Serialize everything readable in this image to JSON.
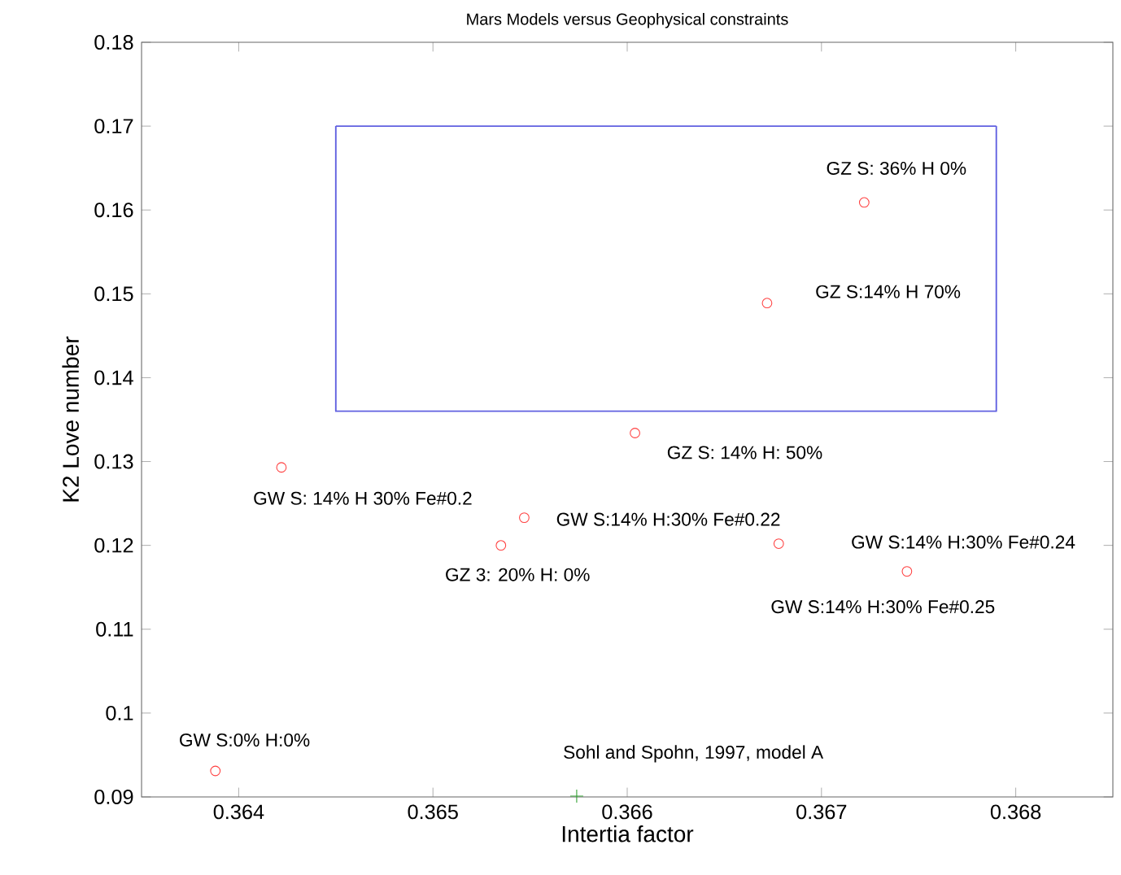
{
  "chart_data": {
    "type": "scatter",
    "title": "Mars Models versus Geophysical constraints",
    "xlabel": "Intertia factor",
    "ylabel": "K2 Love number",
    "xlim": [
      0.3635,
      0.3685
    ],
    "ylim": [
      0.09,
      0.18
    ],
    "xticks": [
      0.364,
      0.365,
      0.366,
      0.367,
      0.368
    ],
    "yticks": [
      0.09,
      0.1,
      0.11,
      0.12,
      0.13,
      0.14,
      0.15,
      0.16,
      0.17,
      0.18
    ],
    "grid": false,
    "series": [
      {
        "marker": "circle",
        "color": "#ff4040",
        "x": [
          0.36722,
          0.36672,
          0.36604,
          0.36422,
          0.36547,
          0.36535,
          0.36678,
          0.36744,
          0.36388
        ],
        "values": [
          0.1609,
          0.1489,
          0.1334,
          0.1293,
          0.1233,
          0.12,
          0.1202,
          0.1169,
          0.0931
        ]
      },
      {
        "marker": "cross",
        "color": "#30a030",
        "x": [
          0.36574
        ],
        "values": [
          0.0901
        ]
      },
      {
        "type": "line",
        "marker": "none",
        "color": "#6060e0",
        "x": [
          0.3645,
          0.3645,
          0.3679,
          0.3679
        ],
        "values": [
          0.17,
          0.136,
          0.136,
          0.17
        ]
      },
      {
        "type": "line",
        "marker": "none",
        "color": "#6060e0",
        "x": [
          0.3645,
          0.3679
        ],
        "values": [
          0.17,
          0.17
        ]
      }
    ],
    "annotations": [
      {
        "text": "GZ S: 36% H 0%",
        "x": 0.36722,
        "y": 0.1609
      },
      {
        "text": "GZ S:14% H 70%",
        "x": 0.36672,
        "y": 0.1489
      },
      {
        "text": "GZ S: 14% H: 50%",
        "x": 0.36604,
        "y": 0.1334
      },
      {
        "text": "GW S: 14% H 30% Fe#0.2",
        "x": 0.36422,
        "y": 0.1293
      },
      {
        "text": "GW S:14% H:30% Fe#0.22",
        "x": 0.36547,
        "y": 0.1233
      },
      {
        "text": "GZ 3: 20% H: 0%",
        "x": 0.36535,
        "y": 0.12
      },
      {
        "text": "GW S:14% H:30% Fe#0.24",
        "x": 0.36744,
        "y": 0.1169
      },
      "GW S:14% H:30% Fe#0.25",
      {
        "text": "GW S:0% H:0%",
        "x": 0.36388,
        "y": 0.0931
      },
      {
        "text": "Sohl and Spohn, 1997, model A",
        "x": 0.36574,
        "y": 0.0901
      }
    ]
  }
}
